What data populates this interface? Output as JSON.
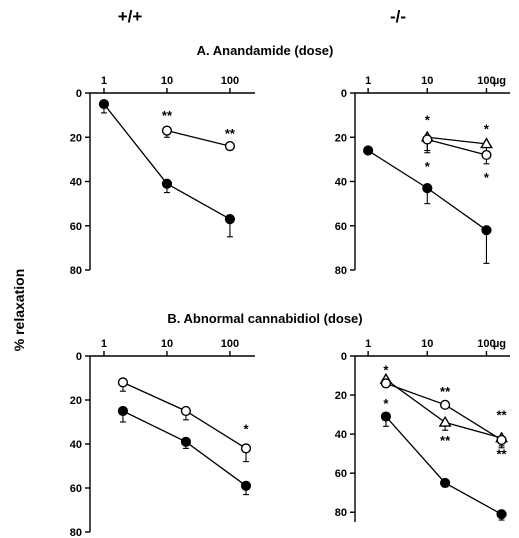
{
  "figure": {
    "genotype_labels": [
      "+/+",
      "-/-"
    ],
    "section_titles": [
      "A.  Anandamide (dose)",
      "B.  Abnormal cannabidiol (dose)"
    ],
    "ylabel": "% relaxation",
    "x_unit": "µg"
  },
  "chart_data": [
    {
      "type": "line",
      "panel": "A +/+",
      "x_scale": "log",
      "y_inverted": true,
      "xticks": [
        "1",
        "10",
        "100"
      ],
      "xlim": [
        0.6,
        250
      ],
      "yticks": [
        "0",
        "20",
        "40",
        "60",
        "80"
      ],
      "ylim": [
        0,
        80
      ],
      "show_unit": false,
      "series": [
        {
          "marker": "filled-circle",
          "x": [
            1,
            10,
            100
          ],
          "y": [
            5,
            41,
            57
          ],
          "err": [
            4,
            4,
            8
          ]
        },
        {
          "marker": "open-circle",
          "x": [
            10,
            100
          ],
          "y": [
            17,
            24
          ],
          "err": [
            3,
            1
          ]
        }
      ],
      "annotations": [
        {
          "text": "**",
          "x": 10,
          "y": 10
        },
        {
          "text": "**",
          "x": 100,
          "y": 18
        }
      ]
    },
    {
      "type": "line",
      "panel": "A -/-",
      "x_scale": "log",
      "y_inverted": true,
      "xticks": [
        "1",
        "10",
        "100"
      ],
      "xlim": [
        0.6,
        250
      ],
      "yticks": [
        "0",
        "20",
        "40",
        "60",
        "80"
      ],
      "ylim": [
        0,
        80
      ],
      "show_unit": true,
      "series": [
        {
          "marker": "filled-circle",
          "x": [
            1,
            10,
            100
          ],
          "y": [
            26,
            43,
            62
          ],
          "err": [
            0,
            7,
            15
          ]
        },
        {
          "marker": "open-triangle",
          "x": [
            10,
            100
          ],
          "y": [
            20,
            23
          ],
          "err": [
            6,
            5
          ]
        },
        {
          "marker": "open-circle",
          "x": [
            10,
            100
          ],
          "y": [
            21,
            28
          ],
          "err": [
            6,
            4
          ]
        }
      ],
      "annotations": [
        {
          "text": "*",
          "x": 10,
          "y": 12
        },
        {
          "text": "*",
          "x": 10,
          "y": 33
        },
        {
          "text": "*",
          "x": 100,
          "y": 16
        },
        {
          "text": "*",
          "x": 100,
          "y": 38
        }
      ]
    },
    {
      "type": "line",
      "panel": "B +/+",
      "x_scale": "log",
      "y_inverted": true,
      "xticks": [
        "1",
        "10",
        "100"
      ],
      "xlim": [
        0.6,
        250
      ],
      "yticks": [
        "0",
        "20",
        "40",
        "60",
        "80"
      ],
      "ylim": [
        0,
        80
      ],
      "show_unit": false,
      "series": [
        {
          "marker": "filled-circle",
          "x": [
            2,
            20,
            180
          ],
          "y": [
            25,
            39,
            59
          ],
          "err": [
            5,
            3,
            4
          ]
        },
        {
          "marker": "open-circle",
          "x": [
            2,
            20,
            180
          ],
          "y": [
            12,
            25,
            42
          ],
          "err": [
            4,
            4,
            6
          ]
        }
      ],
      "annotations": [
        {
          "text": "*",
          "x": 180,
          "y": 33
        }
      ]
    },
    {
      "type": "line",
      "panel": "B -/-",
      "x_scale": "log",
      "y_inverted": true,
      "xticks": [
        "1",
        "10",
        "100"
      ],
      "xlim": [
        0.6,
        250
      ],
      "yticks": [
        "0",
        "20",
        "40",
        "60",
        "80"
      ],
      "ylim": [
        0,
        85
      ],
      "show_unit": true,
      "series": [
        {
          "marker": "filled-circle",
          "x": [
            2,
            20,
            180
          ],
          "y": [
            31,
            65,
            81
          ],
          "err": [
            5,
            2,
            3
          ]
        },
        {
          "marker": "open-triangle",
          "x": [
            2,
            20,
            180
          ],
          "y": [
            12,
            34,
            42
          ],
          "err": [
            0,
            4,
            4
          ]
        },
        {
          "marker": "open-circle",
          "x": [
            2,
            20,
            180
          ],
          "y": [
            14,
            25,
            43
          ],
          "err": [
            0,
            0,
            4
          ]
        }
      ],
      "annotations": [
        {
          "text": "*",
          "x": 2,
          "y": 7
        },
        {
          "text": "*",
          "x": 2,
          "y": 24
        },
        {
          "text": "**",
          "x": 20,
          "y": 18
        },
        {
          "text": "**",
          "x": 20,
          "y": 43
        },
        {
          "text": "**",
          "x": 180,
          "y": 30
        },
        {
          "text": "**",
          "x": 180,
          "y": 50
        }
      ]
    }
  ]
}
